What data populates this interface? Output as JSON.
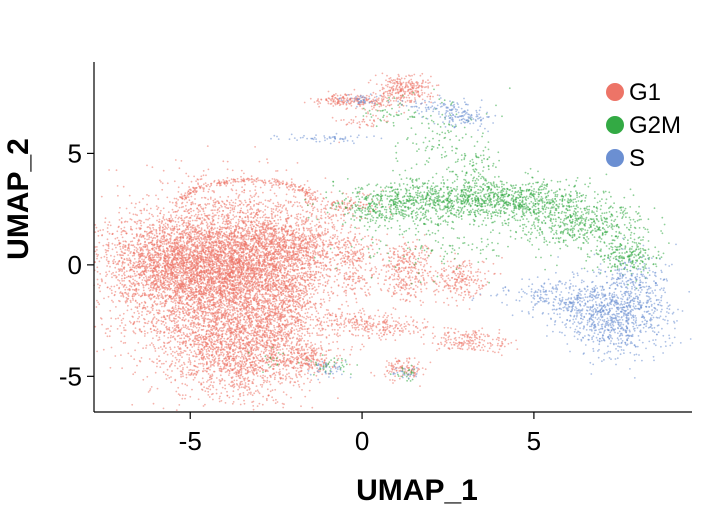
{
  "chart_data": {
    "type": "scatter",
    "title": "",
    "xlabel": "UMAP_1",
    "ylabel": "UMAP_2",
    "xlim": [
      -7.8,
      9.6
    ],
    "ylim": [
      -6.6,
      9.1
    ],
    "xticks": [
      -5,
      0,
      5
    ],
    "yticks": [
      -5,
      0,
      5
    ],
    "xtick_labels": [
      "-5",
      "0",
      "5"
    ],
    "ytick_labels": [
      "-5",
      "0",
      "5"
    ],
    "grid": false,
    "legend_position": "top-right",
    "series": [
      {
        "name": "G1",
        "color": "#ed7467",
        "clusters": [
          {
            "cx": -4.2,
            "cy": -0.6,
            "sx": 1.5,
            "sy": 1.8,
            "n": 5200
          },
          {
            "cx": -3.0,
            "cy": 0.4,
            "sx": 1.2,
            "sy": 1.2,
            "n": 1600
          },
          {
            "cx": -5.7,
            "cy": 0.3,
            "sx": 0.9,
            "sy": 0.9,
            "n": 1000
          },
          {
            "cx": -3.7,
            "cy": -4.0,
            "sx": 1.0,
            "sy": 1.1,
            "n": 1300
          },
          {
            "cx": -2.3,
            "cy": -2.2,
            "sx": 0.6,
            "sy": 1.4,
            "n": 500
          },
          {
            "cx": -1.6,
            "cy": 1.0,
            "sx": 0.8,
            "sy": 0.5,
            "n": 300
          },
          {
            "cx": -0.5,
            "cy": 2.6,
            "sx": 0.6,
            "sy": 0.3,
            "n": 120
          },
          {
            "cx": -0.3,
            "cy": 0.4,
            "sx": 0.25,
            "sy": 0.35,
            "n": 90
          },
          {
            "cx": -0.2,
            "cy": -0.7,
            "sx": 0.3,
            "sy": 0.3,
            "n": 70
          },
          {
            "cx": 1.3,
            "cy": 0.0,
            "sx": 0.35,
            "sy": 0.5,
            "n": 230
          },
          {
            "cx": 1.3,
            "cy": -1.2,
            "sx": 0.3,
            "sy": 0.4,
            "n": 80
          },
          {
            "cx": 2.9,
            "cy": -0.6,
            "sx": 0.45,
            "sy": 0.45,
            "n": 220
          },
          {
            "cx": 0.7,
            "cy": -2.8,
            "sx": 0.7,
            "sy": 0.25,
            "n": 170
          },
          {
            "cx": -0.4,
            "cy": -2.5,
            "sx": 0.4,
            "sy": 0.25,
            "n": 90
          },
          {
            "cx": 3.2,
            "cy": -3.4,
            "sx": 0.55,
            "sy": 0.25,
            "n": 180
          },
          {
            "cx": 1.2,
            "cy": -4.7,
            "sx": 0.35,
            "sy": 0.25,
            "n": 110
          },
          {
            "cx": -1.6,
            "cy": -4.3,
            "sx": 0.5,
            "sy": 0.35,
            "n": 190
          },
          {
            "cx": 1.3,
            "cy": 7.9,
            "sx": 0.4,
            "sy": 0.3,
            "n": 260
          },
          {
            "cx": -0.6,
            "cy": 7.4,
            "sx": 0.4,
            "sy": 0.15,
            "n": 120
          },
          {
            "cx": 0.4,
            "cy": 7.3,
            "sx": 0.5,
            "sy": 0.2,
            "n": 110
          },
          {
            "cx": 0.0,
            "cy": 6.4,
            "sx": 0.4,
            "sy": 0.15,
            "n": 40
          }
        ],
        "arcs": [
          {
            "cx": -3.3,
            "cy": 2.6,
            "r": 2.0,
            "start_deg": 15,
            "end_deg": 165,
            "spread": 0.1,
            "n": 230
          }
        ]
      },
      {
        "name": "G2M",
        "color": "#33aa44",
        "clusters": [
          {
            "cx": 2.2,
            "cy": 2.9,
            "sx": 1.3,
            "sy": 0.5,
            "n": 650
          },
          {
            "cx": 4.5,
            "cy": 2.9,
            "sx": 1.1,
            "sy": 0.45,
            "n": 650
          },
          {
            "cx": 6.4,
            "cy": 1.8,
            "sx": 0.9,
            "sy": 0.55,
            "n": 480
          },
          {
            "cx": 7.7,
            "cy": 0.4,
            "sx": 0.45,
            "sy": 0.45,
            "n": 230
          },
          {
            "cx": 0.6,
            "cy": 2.6,
            "sx": 0.7,
            "sy": 0.45,
            "n": 220
          },
          {
            "cx": 2.5,
            "cy": 1.2,
            "sx": 1.4,
            "sy": 0.9,
            "n": 160
          },
          {
            "cx": 2.3,
            "cy": 5.8,
            "sx": 0.7,
            "sy": 0.9,
            "n": 120
          },
          {
            "cx": 3.3,
            "cy": 4.4,
            "sx": 0.3,
            "sy": 0.6,
            "n": 70
          },
          {
            "cx": -0.9,
            "cy": -4.5,
            "sx": 0.3,
            "sy": 0.2,
            "n": 40
          },
          {
            "cx": 1.3,
            "cy": -4.9,
            "sx": 0.2,
            "sy": 0.15,
            "n": 25
          },
          {
            "cx": 0.7,
            "cy": 6.8,
            "sx": 0.4,
            "sy": 0.3,
            "n": 35
          },
          {
            "cx": -2.6,
            "cy": -4.4,
            "sx": 0.3,
            "sy": 0.3,
            "n": 15
          }
        ],
        "arcs": []
      },
      {
        "name": "S",
        "color": "#6b8fd2",
        "clusters": [
          {
            "cx": 7.4,
            "cy": -2.3,
            "sx": 0.75,
            "sy": 0.85,
            "n": 850
          },
          {
            "cx": 6.1,
            "cy": -1.6,
            "sx": 0.7,
            "sy": 0.5,
            "n": 250
          },
          {
            "cx": 8.0,
            "cy": -0.7,
            "sx": 0.45,
            "sy": 0.6,
            "n": 160
          },
          {
            "cx": 2.9,
            "cy": 6.6,
            "sx": 0.4,
            "sy": 0.2,
            "n": 110
          },
          {
            "cx": 2.1,
            "cy": 7.1,
            "sx": 0.5,
            "sy": 0.2,
            "n": 80
          },
          {
            "cx": -1.1,
            "cy": 5.7,
            "sx": 0.6,
            "sy": 0.1,
            "n": 55
          },
          {
            "cx": 0.0,
            "cy": 7.4,
            "sx": 0.3,
            "sy": 0.12,
            "n": 45
          },
          {
            "cx": -1.0,
            "cy": -4.7,
            "sx": 0.25,
            "sy": 0.2,
            "n": 40
          },
          {
            "cx": 1.2,
            "cy": -4.9,
            "sx": 0.2,
            "sy": 0.15,
            "n": 20
          },
          {
            "cx": 5.0,
            "cy": -1.2,
            "sx": 0.8,
            "sy": 0.2,
            "n": 40
          }
        ],
        "arcs": []
      }
    ]
  }
}
